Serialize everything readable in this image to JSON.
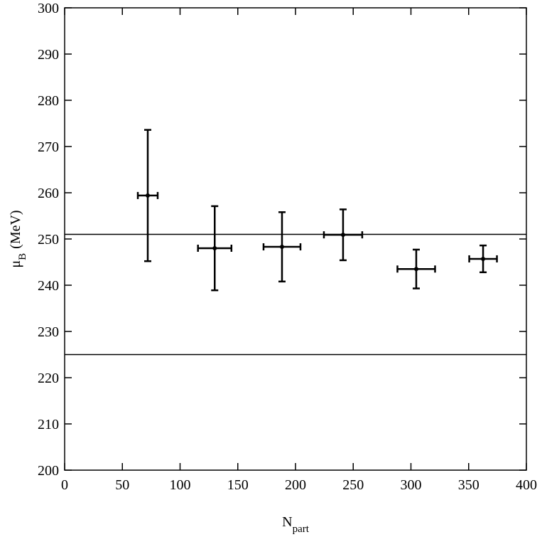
{
  "chart_data": {
    "type": "errorbar",
    "xlabel": {
      "main": "N",
      "sub": "part"
    },
    "ylabel": {
      "main": "μ",
      "sub": "B",
      "rest": "(MeV)"
    },
    "x": [
      72,
      130,
      188.3,
      241.2,
      304.6,
      362.5
    ],
    "values": [
      259.4,
      248,
      248.3,
      250.9,
      243.5,
      245.7
    ],
    "yerr": [
      14.2,
      9.1,
      7.5,
      5.5,
      4.2,
      2.9
    ],
    "xerr": [
      8.6,
      14.5,
      16,
      16.6,
      16.3,
      12
    ],
    "hlines": [
      251,
      225
    ],
    "color": "#000000",
    "xlim": [
      0,
      400
    ],
    "xticks": [
      0,
      50,
      100,
      150,
      200,
      250,
      300,
      350,
      400
    ],
    "ylim": [
      200,
      300
    ],
    "yticks": [
      200,
      210,
      220,
      230,
      240,
      250,
      260,
      270,
      280,
      290,
      300
    ]
  }
}
